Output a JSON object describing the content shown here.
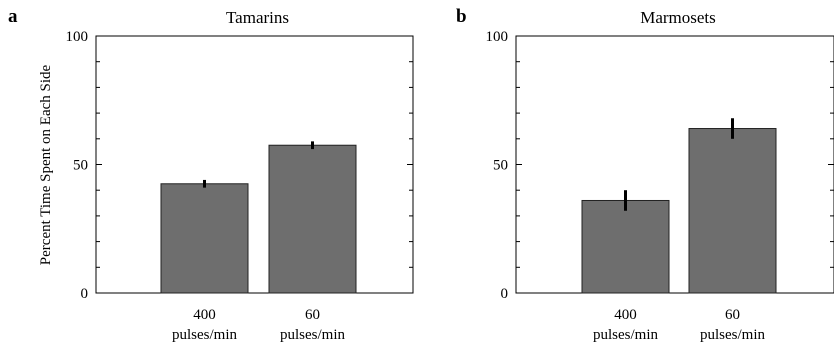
{
  "figure": {
    "y_axis_label": "Percent Time Spent on Each Side"
  },
  "chart_data": [
    {
      "type": "bar",
      "panel_letter": "a",
      "title": "Tamarins",
      "ylabel": "Percent Time Spent on Each Side",
      "ylim": [
        0,
        100
      ],
      "yticks": [
        0,
        50,
        100
      ],
      "categories": [
        [
          "400",
          "pulses/min"
        ],
        [
          "60",
          "pulses/min"
        ]
      ],
      "values": [
        42.5,
        57.5
      ],
      "error": [
        1.5,
        1.5
      ],
      "bar_color": "#6e6e6e",
      "grid": false
    },
    {
      "type": "bar",
      "panel_letter": "b",
      "title": "Marmosets",
      "ylabel": "",
      "ylim": [
        0,
        100
      ],
      "yticks": [
        0,
        50,
        100
      ],
      "categories": [
        [
          "400",
          "pulses/min"
        ],
        [
          "60",
          "pulses/min"
        ]
      ],
      "values": [
        36,
        64
      ],
      "error": [
        4,
        4
      ],
      "bar_color": "#6e6e6e",
      "grid": false
    }
  ]
}
